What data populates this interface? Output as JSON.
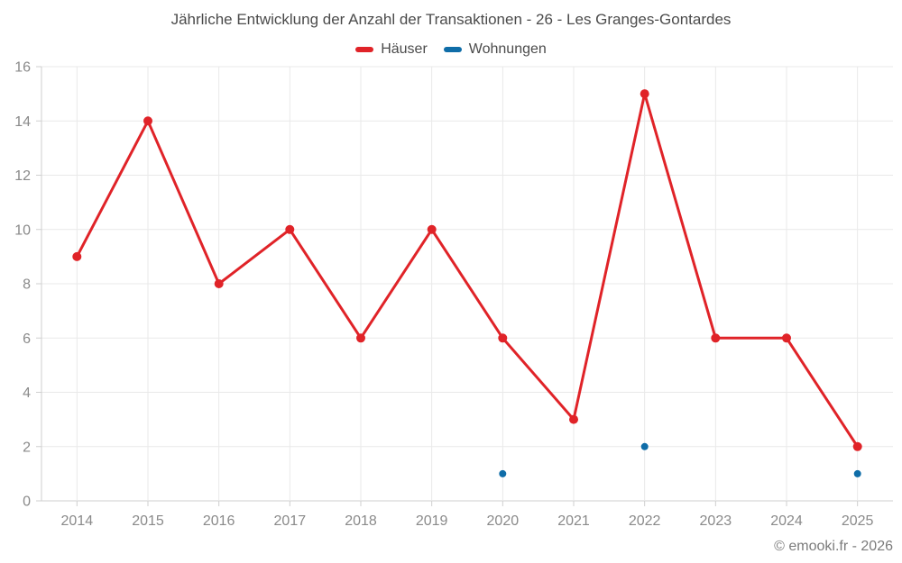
{
  "chart_data": {
    "type": "line",
    "title": "Jährliche Entwicklung der Anzahl der Transaktionen - 26 - Les Granges-Gontardes",
    "categories": [
      "2014",
      "2015",
      "2016",
      "2017",
      "2018",
      "2019",
      "2020",
      "2021",
      "2022",
      "2023",
      "2024",
      "2025"
    ],
    "series": [
      {
        "name": "Häuser",
        "color": "#e02328",
        "values": [
          9,
          14,
          8,
          10,
          6,
          10,
          6,
          3,
          15,
          6,
          6,
          2
        ]
      },
      {
        "name": "Wohnungen",
        "color": "#0f6da8",
        "values": [
          null,
          null,
          null,
          null,
          null,
          null,
          1,
          null,
          2,
          null,
          null,
          1
        ]
      }
    ],
    "xlabel": "",
    "ylabel": "",
    "ylim": [
      0,
      16
    ],
    "ytick_step": 2,
    "ytick_labels": [
      "0",
      "2",
      "4",
      "6",
      "8",
      "10",
      "12",
      "14",
      "16"
    ],
    "grid": true,
    "legend_position": "top"
  },
  "footer": {
    "copyright": "© emooki.fr - 2026"
  },
  "colors": {
    "background": "#ffffff",
    "grid_line": "#e9e9e9",
    "axis_line": "#cfcfcf",
    "tick_label": "#8a8a8a",
    "title_text": "#4b4b4b",
    "copyright_text": "#7b7b7b"
  }
}
